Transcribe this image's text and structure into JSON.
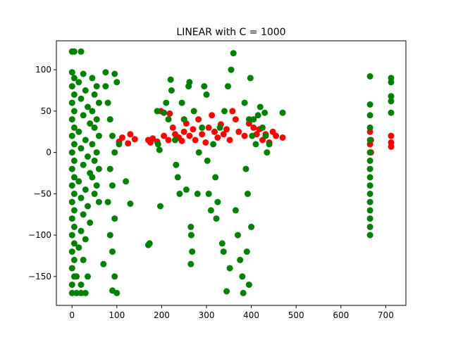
{
  "chart_data": {
    "type": "scatter",
    "title": "LINEAR with C = 1000",
    "xlabel": "",
    "ylabel": "",
    "xlim": [
      -35,
      745
    ],
    "ylim": [
      -185,
      135
    ],
    "xticks": [
      0,
      100,
      200,
      300,
      400,
      500,
      600,
      700
    ],
    "yticks": [
      -150,
      -100,
      -50,
      0,
      50,
      100
    ],
    "grid": false,
    "colors": {
      "red": "#ff0000",
      "green": "#008000"
    },
    "series": [
      {
        "color": "red",
        "points": [
          [
            105,
            13
          ],
          [
            112,
            18
          ],
          [
            125,
            11
          ],
          [
            130,
            22
          ],
          [
            140,
            16
          ],
          [
            170,
            15
          ],
          [
            175,
            12
          ],
          [
            180,
            17
          ],
          [
            190,
            13
          ],
          [
            198,
            50
          ],
          [
            205,
            20
          ],
          [
            215,
            15
          ],
          [
            218,
            47
          ],
          [
            225,
            30
          ],
          [
            230,
            22
          ],
          [
            238,
            18
          ],
          [
            245,
            14
          ],
          [
            250,
            25
          ],
          [
            255,
            35
          ],
          [
            262,
            20
          ],
          [
            270,
            28
          ],
          [
            275,
            15
          ],
          [
            282,
            40
          ],
          [
            290,
            22
          ],
          [
            298,
            12
          ],
          [
            305,
            30
          ],
          [
            312,
            45
          ],
          [
            318,
            25
          ],
          [
            325,
            18
          ],
          [
            332,
            34
          ],
          [
            338,
            22
          ],
          [
            345,
            28
          ],
          [
            352,
            15
          ],
          [
            358,
            50
          ],
          [
            365,
            40
          ],
          [
            372,
            25
          ],
          [
            385,
            20
          ],
          [
            395,
            35
          ],
          [
            405,
            30
          ],
          [
            412,
            22
          ],
          [
            418,
            28
          ],
          [
            425,
            15
          ],
          [
            432,
            22
          ],
          [
            440,
            12
          ],
          [
            448,
            25
          ],
          [
            455,
            20
          ],
          [
            470,
            18
          ],
          [
            665,
            25
          ],
          [
            665,
            10
          ],
          [
            667,
            0
          ],
          [
            667,
            15
          ],
          [
            712,
            20
          ],
          [
            712,
            12
          ],
          [
            712,
            7
          ]
        ]
      },
      {
        "color": "green",
        "points": [
          [
            0,
            122
          ],
          [
            5,
            122
          ],
          [
            20,
            122
          ],
          [
            0,
            97
          ],
          [
            5,
            90
          ],
          [
            0,
            80
          ],
          [
            5,
            70
          ],
          [
            0,
            60
          ],
          [
            5,
            50
          ],
          [
            0,
            40
          ],
          [
            5,
            30
          ],
          [
            0,
            20
          ],
          [
            5,
            10
          ],
          [
            0,
            0
          ],
          [
            5,
            -10
          ],
          [
            0,
            -20
          ],
          [
            5,
            -30
          ],
          [
            0,
            -40
          ],
          [
            5,
            -50
          ],
          [
            0,
            -60
          ],
          [
            5,
            -70
          ],
          [
            0,
            -80
          ],
          [
            5,
            -90
          ],
          [
            0,
            -100
          ],
          [
            5,
            -110
          ],
          [
            0,
            -120
          ],
          [
            5,
            -130
          ],
          [
            0,
            -140
          ],
          [
            5,
            -150
          ],
          [
            0,
            -160
          ],
          [
            0,
            -170
          ],
          [
            10,
            -170
          ],
          [
            20,
            -170
          ],
          [
            25,
            95
          ],
          [
            15,
            85
          ],
          [
            30,
            75
          ],
          [
            20,
            65
          ],
          [
            35,
            55
          ],
          [
            25,
            45
          ],
          [
            40,
            35
          ],
          [
            15,
            25
          ],
          [
            30,
            15
          ],
          [
            20,
            5
          ],
          [
            35,
            -5
          ],
          [
            25,
            -15
          ],
          [
            40,
            -25
          ],
          [
            15,
            -35
          ],
          [
            30,
            -45
          ],
          [
            20,
            -55
          ],
          [
            35,
            -65
          ],
          [
            25,
            -75
          ],
          [
            40,
            -85
          ],
          [
            20,
            -95
          ],
          [
            30,
            -105
          ],
          [
            15,
            -115
          ],
          [
            25,
            -130
          ],
          [
            35,
            -150
          ],
          [
            20,
            -160
          ],
          [
            10,
            -150
          ],
          [
            30,
            -170
          ],
          [
            45,
            90
          ],
          [
            55,
            80
          ],
          [
            50,
            70
          ],
          [
            60,
            60
          ],
          [
            45,
            50
          ],
          [
            55,
            40
          ],
          [
            50,
            30
          ],
          [
            60,
            20
          ],
          [
            45,
            10
          ],
          [
            55,
            0
          ],
          [
            50,
            -10
          ],
          [
            60,
            -20
          ],
          [
            45,
            -30
          ],
          [
            55,
            -40
          ],
          [
            50,
            -50
          ],
          [
            60,
            -60
          ],
          [
            70,
            -135
          ],
          [
            75,
            80
          ],
          [
            80,
            60
          ],
          [
            85,
            40
          ],
          [
            90,
            20
          ],
          [
            95,
            0
          ],
          [
            85,
            -20
          ],
          [
            90,
            -40
          ],
          [
            80,
            -60
          ],
          [
            95,
            -80
          ],
          [
            85,
            -100
          ],
          [
            90,
            -120
          ],
          [
            95,
            -150
          ],
          [
            90,
            -167
          ],
          [
            100,
            -170
          ],
          [
            75,
            97
          ],
          [
            95,
            95
          ],
          [
            100,
            85
          ],
          [
            105,
            10
          ],
          [
            120,
            -35
          ],
          [
            130,
            -62
          ],
          [
            170,
            -112
          ],
          [
            173,
            -110
          ],
          [
            197,
            -65
          ],
          [
            190,
            50
          ],
          [
            192,
            10
          ],
          [
            195,
            3
          ],
          [
            205,
            48
          ],
          [
            210,
            60
          ],
          [
            215,
            40
          ],
          [
            220,
            88
          ],
          [
            222,
            75
          ],
          [
            230,
            15
          ],
          [
            232,
            -15
          ],
          [
            236,
            -30
          ],
          [
            240,
            -50
          ],
          [
            245,
            60
          ],
          [
            250,
            40
          ],
          [
            255,
            -45
          ],
          [
            260,
            80
          ],
          [
            262,
            85
          ],
          [
            265,
            -90
          ],
          [
            266,
            -100
          ],
          [
            268,
            -120
          ],
          [
            265,
            -135
          ],
          [
            272,
            50
          ],
          [
            280,
            -50
          ],
          [
            283,
            0
          ],
          [
            290,
            30
          ],
          [
            295,
            80
          ],
          [
            300,
            70
          ],
          [
            302,
            -10
          ],
          [
            305,
            -50
          ],
          [
            310,
            -70
          ],
          [
            315,
            10
          ],
          [
            320,
            -30
          ],
          [
            322,
            -80
          ],
          [
            325,
            -60
          ],
          [
            330,
            30
          ],
          [
            335,
            -110
          ],
          [
            338,
            -120
          ],
          [
            340,
            50
          ],
          [
            345,
            -168
          ],
          [
            348,
            80
          ],
          [
            352,
            -140
          ],
          [
            355,
            100
          ],
          [
            360,
            120
          ],
          [
            365,
            -70
          ],
          [
            370,
            -100
          ],
          [
            375,
            -130
          ],
          [
            380,
            -150
          ],
          [
            382,
            -170
          ],
          [
            385,
            60
          ],
          [
            388,
            -20
          ],
          [
            392,
            -50
          ],
          [
            395,
            40
          ],
          [
            398,
            90
          ],
          [
            400,
            -90
          ],
          [
            402,
            20
          ],
          [
            395,
            -160
          ],
          [
            390,
            -120
          ],
          [
            405,
            40
          ],
          [
            410,
            10
          ],
          [
            415,
            45
          ],
          [
            420,
            55
          ],
          [
            425,
            30
          ],
          [
            430,
            48
          ],
          [
            432,
            20
          ],
          [
            435,
            0
          ],
          [
            440,
            10
          ],
          [
            470,
            48
          ],
          [
            665,
            92
          ],
          [
            665,
            58
          ],
          [
            665,
            45
          ],
          [
            665,
            30
          ],
          [
            665,
            15
          ],
          [
            665,
            0
          ],
          [
            665,
            -10
          ],
          [
            665,
            -20
          ],
          [
            665,
            -30
          ],
          [
            665,
            -40
          ],
          [
            665,
            -50
          ],
          [
            665,
            -60
          ],
          [
            665,
            -70
          ],
          [
            665,
            -80
          ],
          [
            665,
            -90
          ],
          [
            665,
            -100
          ],
          [
            712,
            90
          ],
          [
            712,
            85
          ],
          [
            712,
            68
          ],
          [
            712,
            62
          ],
          [
            712,
            48
          ]
        ]
      }
    ]
  }
}
